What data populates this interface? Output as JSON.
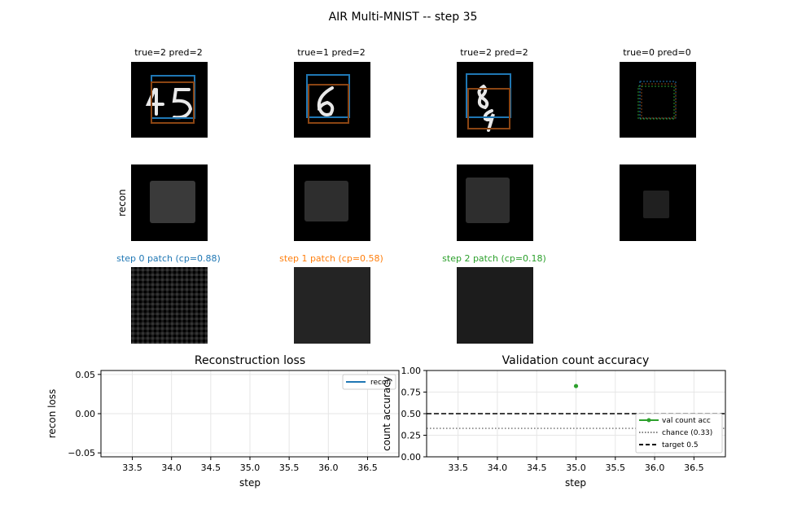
{
  "title": "AIR Multi-MNIST -- step 35",
  "samples": [
    {
      "label": "true=2 pred=2"
    },
    {
      "label": "true=1 pred=2"
    },
    {
      "label": "true=2 pred=2"
    },
    {
      "label": "true=0 pred=0"
    }
  ],
  "recon_row_label": "recon",
  "patches": [
    {
      "label": "step 0 patch (cp=0.88)",
      "color": "#1f77b4"
    },
    {
      "label": "step 1 patch (cp=0.58)",
      "color": "#ff7f0e"
    },
    {
      "label": "step 2 patch (cp=0.18)",
      "color": "#2ca02c"
    }
  ],
  "box_colors": [
    "#1f77b4",
    "#ff7f0e",
    "#2ca02c"
  ],
  "chart_data": [
    {
      "type": "line",
      "title": "Reconstruction loss",
      "xlabel": "step",
      "ylabel": "recon loss",
      "xlim": [
        33.1,
        36.9
      ],
      "ylim": [
        -0.055,
        0.055
      ],
      "xticks": [
        "33.5",
        "34.0",
        "34.5",
        "35.0",
        "35.5",
        "36.0",
        "36.5"
      ],
      "yticks": [
        "0.05",
        "0.00",
        "−0.05"
      ],
      "grid": true,
      "legend_position": "upper right",
      "series": [
        {
          "name": "recon",
          "color": "#1f77b4",
          "x": [],
          "y": []
        }
      ]
    },
    {
      "type": "line",
      "title": "Validation count accuracy",
      "xlabel": "step",
      "ylabel": "count accuracy",
      "xlim": [
        33.1,
        36.9
      ],
      "ylim": [
        0.0,
        1.0
      ],
      "xticks": [
        "33.5",
        "34.0",
        "34.5",
        "35.0",
        "35.5",
        "36.0",
        "36.5"
      ],
      "yticks": [
        "1.00",
        "0.75",
        "0.50",
        "0.25",
        "0.00"
      ],
      "grid": true,
      "legend_position": "lower right",
      "series": [
        {
          "name": "val count acc",
          "color": "#2ca02c",
          "x": [
            35.0
          ],
          "y": [
            0.82
          ]
        }
      ],
      "reference_lines": [
        {
          "name": "chance (0.33)",
          "y": 0.33,
          "style": "dotted",
          "color": "#808080"
        },
        {
          "name": "target 0.5",
          "y": 0.5,
          "style": "dashed",
          "color": "#000000"
        }
      ]
    }
  ]
}
